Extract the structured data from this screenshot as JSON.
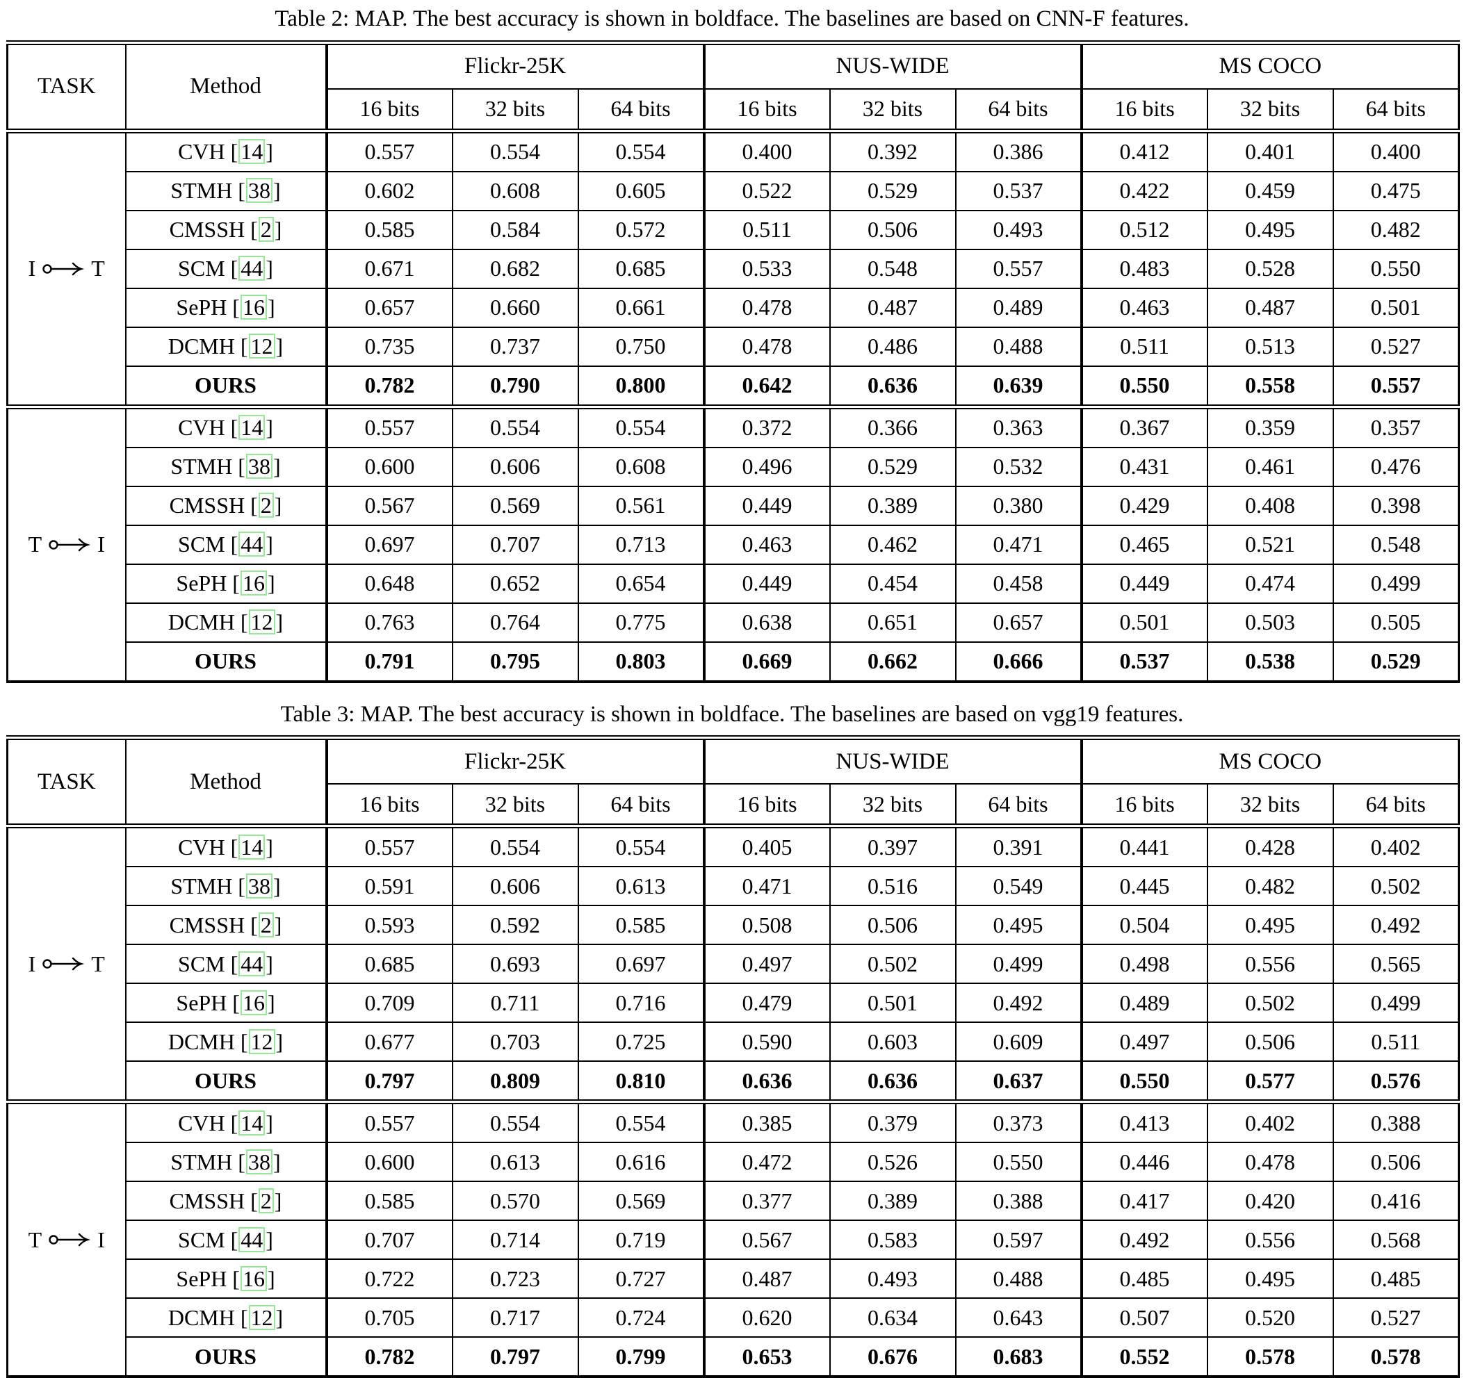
{
  "colors": {
    "text": "#000000",
    "table_border": "#000000",
    "citation_box_green": "#98e698",
    "background": "#ffffff"
  },
  "tables": [
    {
      "caption": "Table 2: MAP. The best accuracy is shown in boldface. The baselines are based on CNN-F features.",
      "task_header": "TASK",
      "method_header": "Method",
      "datasets": [
        "Flickr-25K",
        "NUS-WIDE",
        "MS COCO"
      ],
      "bit_headers": [
        "16 bits",
        "32 bits",
        "64 bits"
      ],
      "sections": [
        {
          "task_from": "I",
          "task_to": "T",
          "rows": [
            {
              "method": "CVH",
              "cite": "14",
              "bold": false,
              "values": [
                "0.557",
                "0.554",
                "0.554",
                "0.400",
                "0.392",
                "0.386",
                "0.412",
                "0.401",
                "0.400"
              ]
            },
            {
              "method": "STMH",
              "cite": "38",
              "bold": false,
              "values": [
                "0.602",
                "0.608",
                "0.605",
                "0.522",
                "0.529",
                "0.537",
                "0.422",
                "0.459",
                "0.475"
              ]
            },
            {
              "method": "CMSSH",
              "cite": "2",
              "bold": false,
              "values": [
                "0.585",
                "0.584",
                "0.572",
                "0.511",
                "0.506",
                "0.493",
                "0.512",
                "0.495",
                "0.482"
              ]
            },
            {
              "method": "SCM",
              "cite": "44",
              "bold": false,
              "values": [
                "0.671",
                "0.682",
                "0.685",
                "0.533",
                "0.548",
                "0.557",
                "0.483",
                "0.528",
                "0.550"
              ]
            },
            {
              "method": "SePH",
              "cite": "16",
              "bold": false,
              "values": [
                "0.657",
                "0.660",
                "0.661",
                "0.478",
                "0.487",
                "0.489",
                "0.463",
                "0.487",
                "0.501"
              ]
            },
            {
              "method": "DCMH",
              "cite": "12",
              "bold": false,
              "values": [
                "0.735",
                "0.737",
                "0.750",
                "0.478",
                "0.486",
                "0.488",
                "0.511",
                "0.513",
                "0.527"
              ]
            },
            {
              "method": "OURS",
              "cite": null,
              "bold": true,
              "values": [
                "0.782",
                "0.790",
                "0.800",
                "0.642",
                "0.636",
                "0.639",
                "0.550",
                "0.558",
                "0.557"
              ]
            }
          ]
        },
        {
          "task_from": "T",
          "task_to": "I",
          "rows": [
            {
              "method": "CVH",
              "cite": "14",
              "bold": false,
              "values": [
                "0.557",
                "0.554",
                "0.554",
                "0.372",
                "0.366",
                "0.363",
                "0.367",
                "0.359",
                "0.357"
              ]
            },
            {
              "method": "STMH",
              "cite": "38",
              "bold": false,
              "values": [
                "0.600",
                "0.606",
                "0.608",
                "0.496",
                "0.529",
                "0.532",
                "0.431",
                "0.461",
                "0.476"
              ]
            },
            {
              "method": "CMSSH",
              "cite": "2",
              "bold": false,
              "values": [
                "0.567",
                "0.569",
                "0.561",
                "0.449",
                "0.389",
                "0.380",
                "0.429",
                "0.408",
                "0.398"
              ]
            },
            {
              "method": "SCM",
              "cite": "44",
              "bold": false,
              "values": [
                "0.697",
                "0.707",
                "0.713",
                "0.463",
                "0.462",
                "0.471",
                "0.465",
                "0.521",
                "0.548"
              ]
            },
            {
              "method": "SePH",
              "cite": "16",
              "bold": false,
              "values": [
                "0.648",
                "0.652",
                "0.654",
                "0.449",
                "0.454",
                "0.458",
                "0.449",
                "0.474",
                "0.499"
              ]
            },
            {
              "method": "DCMH",
              "cite": "12",
              "bold": false,
              "values": [
                "0.763",
                "0.764",
                "0.775",
                "0.638",
                "0.651",
                "0.657",
                "0.501",
                "0.503",
                "0.505"
              ]
            },
            {
              "method": "OURS",
              "cite": null,
              "bold": true,
              "values": [
                "0.791",
                "0.795",
                "0.803",
                "0.669",
                "0.662",
                "0.666",
                "0.537",
                "0.538",
                "0.529"
              ]
            }
          ]
        }
      ]
    },
    {
      "caption": "Table 3: MAP. The best accuracy is shown in boldface. The baselines are based on vgg19 features.",
      "task_header": "TASK",
      "method_header": "Method",
      "datasets": [
        "Flickr-25K",
        "NUS-WIDE",
        "MS COCO"
      ],
      "bit_headers": [
        "16 bits",
        "32 bits",
        "64 bits"
      ],
      "sections": [
        {
          "task_from": "I",
          "task_to": "T",
          "rows": [
            {
              "method": "CVH",
              "cite": "14",
              "bold": false,
              "values": [
                "0.557",
                "0.554",
                "0.554",
                "0.405",
                "0.397",
                "0.391",
                "0.441",
                "0.428",
                "0.402"
              ]
            },
            {
              "method": "STMH",
              "cite": "38",
              "bold": false,
              "values": [
                "0.591",
                "0.606",
                "0.613",
                "0.471",
                "0.516",
                "0.549",
                "0.445",
                "0.482",
                "0.502"
              ]
            },
            {
              "method": "CMSSH",
              "cite": "2",
              "bold": false,
              "values": [
                "0.593",
                "0.592",
                "0.585",
                "0.508",
                "0.506",
                "0.495",
                "0.504",
                "0.495",
                "0.492"
              ]
            },
            {
              "method": "SCM",
              "cite": "44",
              "bold": false,
              "values": [
                "0.685",
                "0.693",
                "0.697",
                "0.497",
                "0.502",
                "0.499",
                "0.498",
                "0.556",
                "0.565"
              ]
            },
            {
              "method": "SePH",
              "cite": "16",
              "bold": false,
              "values": [
                "0.709",
                "0.711",
                "0.716",
                "0.479",
                "0.501",
                "0.492",
                "0.489",
                "0.502",
                "0.499"
              ]
            },
            {
              "method": "DCMH",
              "cite": "12",
              "bold": false,
              "values": [
                "0.677",
                "0.703",
                "0.725",
                "0.590",
                "0.603",
                "0.609",
                "0.497",
                "0.506",
                "0.511"
              ]
            },
            {
              "method": "OURS",
              "cite": null,
              "bold": true,
              "values": [
                "0.797",
                "0.809",
                "0.810",
                "0.636",
                "0.636",
                "0.637",
                "0.550",
                "0.577",
                "0.576"
              ]
            }
          ]
        },
        {
          "task_from": "T",
          "task_to": "I",
          "rows": [
            {
              "method": "CVH",
              "cite": "14",
              "bold": false,
              "values": [
                "0.557",
                "0.554",
                "0.554",
                "0.385",
                "0.379",
                "0.373",
                "0.413",
                "0.402",
                "0.388"
              ]
            },
            {
              "method": "STMH",
              "cite": "38",
              "bold": false,
              "values": [
                "0.600",
                "0.613",
                "0.616",
                "0.472",
                "0.526",
                "0.550",
                "0.446",
                "0.478",
                "0.506"
              ]
            },
            {
              "method": "CMSSH",
              "cite": "2",
              "bold": false,
              "values": [
                "0.585",
                "0.570",
                "0.569",
                "0.377",
                "0.389",
                "0.388",
                "0.417",
                "0.420",
                "0.416"
              ]
            },
            {
              "method": "SCM",
              "cite": "44",
              "bold": false,
              "values": [
                "0.707",
                "0.714",
                "0.719",
                "0.567",
                "0.583",
                "0.597",
                "0.492",
                "0.556",
                "0.568"
              ]
            },
            {
              "method": "SePH",
              "cite": "16",
              "bold": false,
              "values": [
                "0.722",
                "0.723",
                "0.727",
                "0.487",
                "0.493",
                "0.488",
                "0.485",
                "0.495",
                "0.485"
              ]
            },
            {
              "method": "DCMH",
              "cite": "12",
              "bold": false,
              "values": [
                "0.705",
                "0.717",
                "0.724",
                "0.620",
                "0.634",
                "0.643",
                "0.507",
                "0.520",
                "0.527"
              ]
            },
            {
              "method": "OURS",
              "cite": null,
              "bold": true,
              "values": [
                "0.782",
                "0.797",
                "0.799",
                "0.653",
                "0.676",
                "0.683",
                "0.552",
                "0.578",
                "0.578"
              ]
            }
          ]
        }
      ]
    }
  ]
}
